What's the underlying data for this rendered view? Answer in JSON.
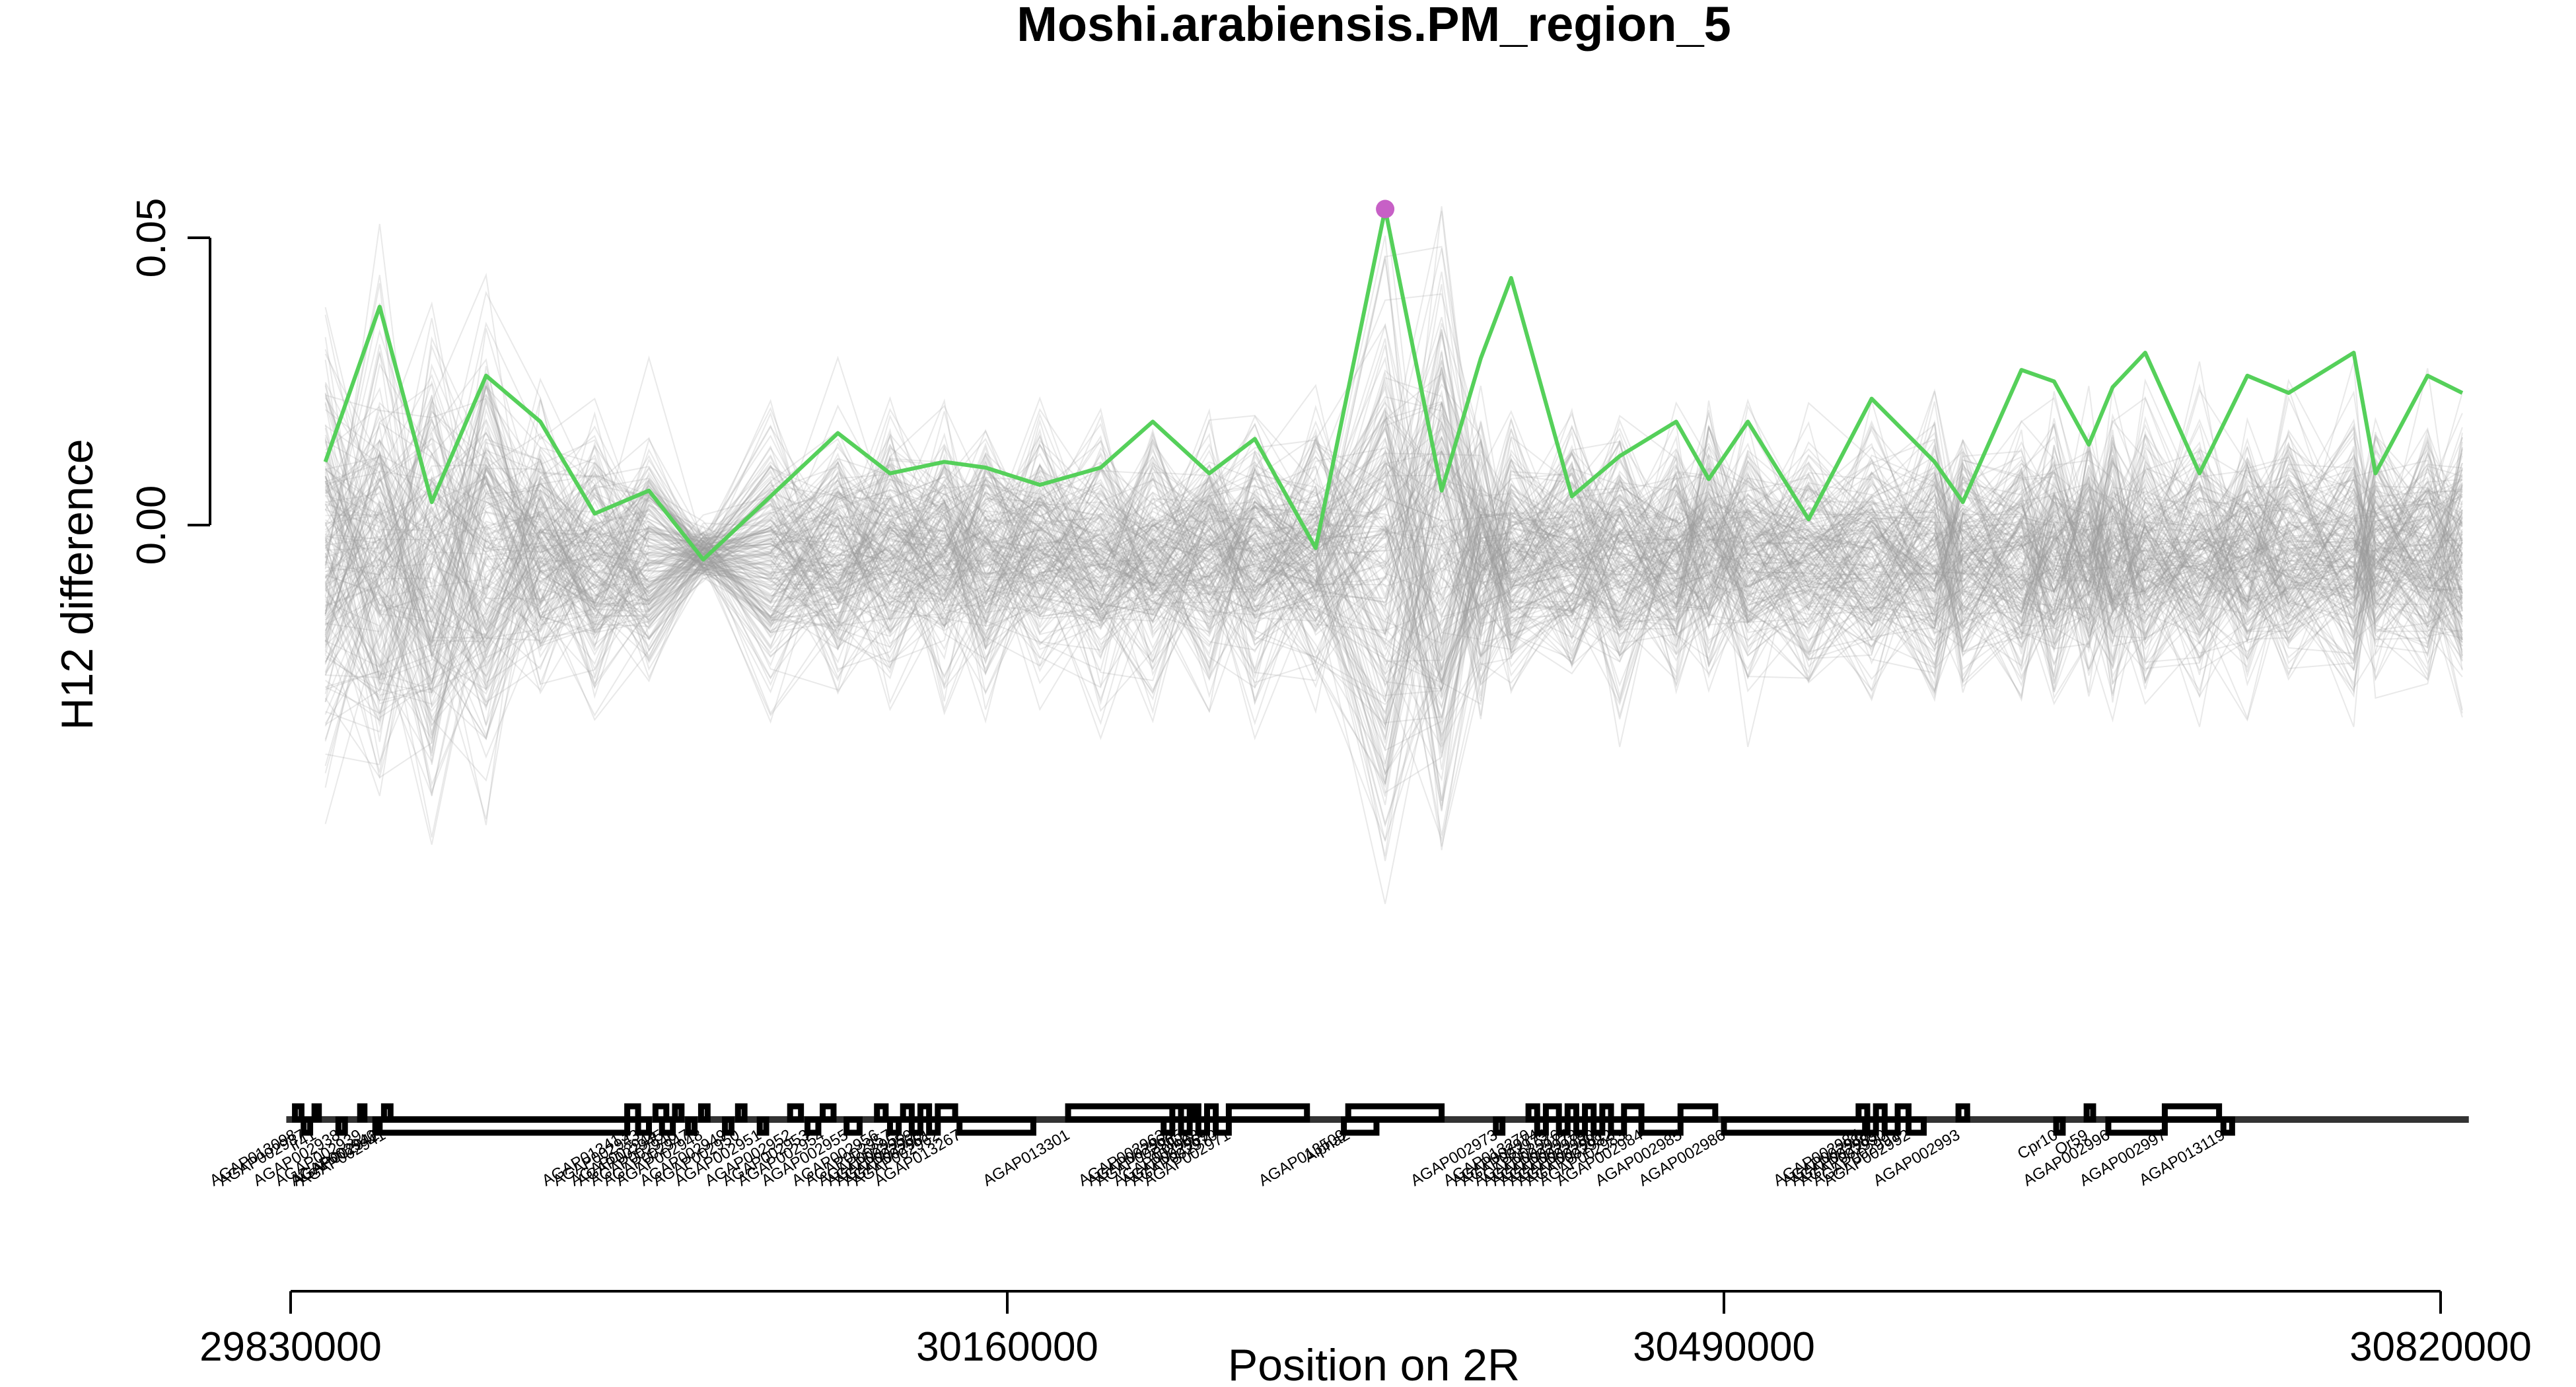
{
  "chart_data": {
    "type": "line",
    "title": "Moshi.arabiensis.PM_region_5",
    "ylabel": "H12 difference",
    "xlabel": "Position on 2R",
    "xlim": [
      29830000,
      30820000
    ],
    "ylim": [
      -0.1,
      0.07
    ],
    "yticks": [
      0.0,
      0.05
    ],
    "ytick_labels": [
      "0.00",
      "0.05"
    ],
    "xticks": [
      29830000,
      30160000,
      30490000,
      30820000
    ],
    "xtick_labels": [
      "29830000",
      "30160000",
      "30490000",
      "30820000"
    ],
    "colors": {
      "main_line": "#55d05a",
      "peak_point": "#c760c6",
      "background_lines": "#9a9a9a",
      "gene_track": "#000000"
    },
    "grid": false,
    "legend": "none",
    "background_series_count": 200,
    "background_series_note_color": "grey",
    "series": [
      {
        "x": [
          29846000,
          29871000,
          29895000,
          29920000,
          29945000,
          29970000,
          29995000,
          30020000,
          30051000,
          30082000,
          30106000,
          30131000,
          30150000,
          30175000,
          30203000,
          30227000,
          30253000,
          30274000,
          30302000,
          30334000,
          30360000,
          30378000,
          30392000,
          30420000,
          30442000,
          30468000,
          30483000,
          30501000,
          30529000,
          30558000,
          30587000,
          30600000,
          30627000,
          30642000,
          30658000,
          30669000,
          30684000,
          30709000,
          30731000,
          30750000,
          30780000,
          30790000,
          30814000,
          30830000
        ],
        "y": [
          0.011,
          0.038,
          0.004,
          0.026,
          0.018,
          0.002,
          0.006,
          -0.006,
          0.005,
          0.016,
          0.009,
          0.011,
          0.01,
          0.007,
          0.01,
          0.018,
          0.009,
          0.015,
          -0.004,
          0.055,
          0.006,
          0.029,
          0.043,
          0.005,
          0.012,
          0.018,
          0.008,
          0.018,
          0.001,
          0.022,
          0.011,
          0.004,
          0.027,
          0.025,
          0.014,
          0.024,
          0.03,
          0.009,
          0.026,
          0.023,
          0.03,
          0.009,
          0.026,
          0.023
        ]
      }
    ],
    "peak": {
      "x": 30334000,
      "y": 0.055
    },
    "genes": [
      {
        "label": "AGAP013098",
        "start": 29832000,
        "end": 29835000
      },
      {
        "label": "AGAP002937",
        "start": 29836000,
        "end": 29839000
      },
      {
        "label": "Ir41",
        "start": 29841000,
        "end": 29843000
      },
      {
        "label": "AGAP002938",
        "start": 29852000,
        "end": 29855000
      },
      {
        "label": "AGAP002939",
        "start": 29862000,
        "end": 29864000
      },
      {
        "label": "AGAP002940",
        "start": 29869000,
        "end": 29871000
      },
      {
        "label": "AGAP002941",
        "start": 29873000,
        "end": 29876000
      },
      {
        "label": "AGAP002942",
        "start": 29870000,
        "end": 29985000
      },
      {
        "label": "AGAP013413",
        "start": 29985000,
        "end": 29990000
      },
      {
        "label": "AGAP002943",
        "start": 29990000,
        "end": 29995000
      },
      {
        "label": "AGAP002944",
        "start": 29998000,
        "end": 30003000
      },
      {
        "label": "AGAP002945",
        "start": 30001000,
        "end": 30006000
      },
      {
        "label": "AGAP002946",
        "start": 30007000,
        "end": 30010000
      },
      {
        "label": "AGAP002947",
        "start": 30013000,
        "end": 30016000
      },
      {
        "label": "AGAP002948",
        "start": 30019000,
        "end": 30022000
      },
      {
        "label": "AGAP002949",
        "start": 30030000,
        "end": 30033000
      },
      {
        "label": "AGAP002950",
        "start": 30036000,
        "end": 30039000
      },
      {
        "label": "AGAP002951",
        "start": 30046000,
        "end": 30049000
      },
      {
        "label": "AGAP002952",
        "start": 30060000,
        "end": 30065000
      },
      {
        "label": "AGAP002953",
        "start": 30068000,
        "end": 30073000
      },
      {
        "label": "AGAP002954",
        "start": 30075000,
        "end": 30080000
      },
      {
        "label": "AGAP002955",
        "start": 30086000,
        "end": 30092000
      },
      {
        "label": "AGAP002956",
        "start": 30100000,
        "end": 30104000
      },
      {
        "label": "AGAP002957",
        "start": 30106000,
        "end": 30110000
      },
      {
        "label": "AGAP002958",
        "start": 30112000,
        "end": 30116000
      },
      {
        "label": "AGAP002959",
        "start": 30116000,
        "end": 30120000
      },
      {
        "label": "AGAP002960",
        "start": 30120000,
        "end": 30124000
      },
      {
        "label": "AGAP002961",
        "start": 30124000,
        "end": 30128000
      },
      {
        "label": "AGAP002962",
        "start": 30128000,
        "end": 30136000
      },
      {
        "label": "AGAP013267",
        "start": 30138000,
        "end": 30172000
      },
      {
        "label": "AGAP013301",
        "start": 30188000,
        "end": 30246000
      },
      {
        "label": "AGAP002963",
        "start": 30232000,
        "end": 30236000
      },
      {
        "label": "AGAP002964",
        "start": 30236000,
        "end": 30240000
      },
      {
        "label": "AGAP002965",
        "start": 30240000,
        "end": 30244000
      },
      {
        "label": "Pollux",
        "start": 30244000,
        "end": 30248000
      },
      {
        "label": "AGAP002968",
        "start": 30248000,
        "end": 30252000
      },
      {
        "label": "AGAP002969",
        "start": 30252000,
        "end": 30256000
      },
      {
        "label": "AGAP002970",
        "start": 30256000,
        "end": 30262000
      },
      {
        "label": "AGAP002971",
        "start": 30262000,
        "end": 30298000
      },
      {
        "label": "AGAP013509",
        "start": 30315000,
        "end": 30330000
      },
      {
        "label": "Alpha2",
        "start": 30317000,
        "end": 30360000
      },
      {
        "label": "AGAP002973",
        "start": 30385000,
        "end": 30388000
      },
      {
        "label": "AGAP013270",
        "start": 30400000,
        "end": 30404000
      },
      {
        "label": "AGAP002974",
        "start": 30404000,
        "end": 30408000
      },
      {
        "label": "AGAP002975",
        "start": 30408000,
        "end": 30414000
      },
      {
        "label": "AGAP002976",
        "start": 30414000,
        "end": 30418000
      },
      {
        "label": "AGAP002977",
        "start": 30418000,
        "end": 30422000
      },
      {
        "label": "AGAP002978",
        "start": 30422000,
        "end": 30426000
      },
      {
        "label": "AGAP002979",
        "start": 30426000,
        "end": 30430000
      },
      {
        "label": "AGAP002980",
        "start": 30430000,
        "end": 30434000
      },
      {
        "label": "AGAP002981",
        "start": 30434000,
        "end": 30438000
      },
      {
        "label": "AGAP002982",
        "start": 30438000,
        "end": 30444000
      },
      {
        "label": "AGAP002983",
        "start": 30444000,
        "end": 30452000
      },
      {
        "label": "AGAP002984",
        "start": 30452000,
        "end": 30470000
      },
      {
        "label": "AGAP002985",
        "start": 30470000,
        "end": 30486000
      },
      {
        "label": "AGAP002986",
        "start": 30490000,
        "end": 30555000
      },
      {
        "label": "AGAP002987",
        "start": 30552000,
        "end": 30556000
      },
      {
        "label": "AGAP002988",
        "start": 30556000,
        "end": 30560000
      },
      {
        "label": "AGAP002989",
        "start": 30560000,
        "end": 30564000
      },
      {
        "label": "AGAP002990",
        "start": 30564000,
        "end": 30570000
      },
      {
        "label": "AGAP002991",
        "start": 30570000,
        "end": 30575000
      },
      {
        "label": "AGAP002992",
        "start": 30575000,
        "end": 30582000
      },
      {
        "label": "AGAP002993",
        "start": 30598000,
        "end": 30602000
      },
      {
        "label": "Cpr10",
        "start": 30643000,
        "end": 30646000
      },
      {
        "label": "Or59",
        "start": 30657000,
        "end": 30660000
      },
      {
        "label": "AGAP002996",
        "start": 30667000,
        "end": 30693000
      },
      {
        "label": "AGAP002997",
        "start": 30693000,
        "end": 30718000
      },
      {
        "label": "AGAP013119",
        "start": 30720000,
        "end": 30724000
      }
    ]
  }
}
